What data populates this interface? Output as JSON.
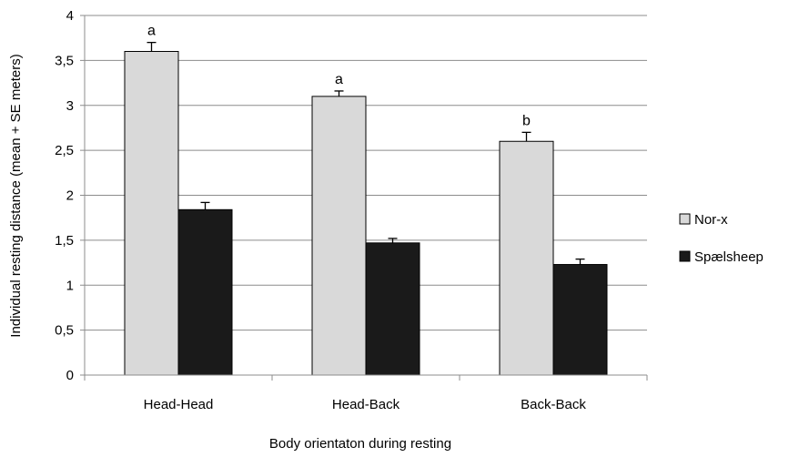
{
  "chart_data": {
    "type": "bar",
    "title": "",
    "xlabel": "Body orientaton during resting",
    "ylabel": "Individual resting distance (mean + SE meters)",
    "categories": [
      "Head-Head",
      "Head-Back",
      "Back-Back"
    ],
    "ylim": [
      0,
      4
    ],
    "yticks": [
      "0",
      "0,5",
      "1",
      "1,5",
      "2",
      "2,5",
      "3",
      "3,5",
      "4"
    ],
    "grid": true,
    "legend_position": "right",
    "series": [
      {
        "name": "Nor-x",
        "color": "#d9d9d9",
        "values": [
          3.6,
          3.1,
          2.6
        ],
        "errors": [
          0.1,
          0.06,
          0.1
        ],
        "significance": [
          "a",
          "a",
          "b"
        ]
      },
      {
        "name": "Spælsheep",
        "color": "#1a1a1a",
        "values": [
          1.84,
          1.47,
          1.23
        ],
        "errors": [
          0.08,
          0.05,
          0.06
        ],
        "significance": [
          "",
          "",
          ""
        ]
      }
    ]
  }
}
